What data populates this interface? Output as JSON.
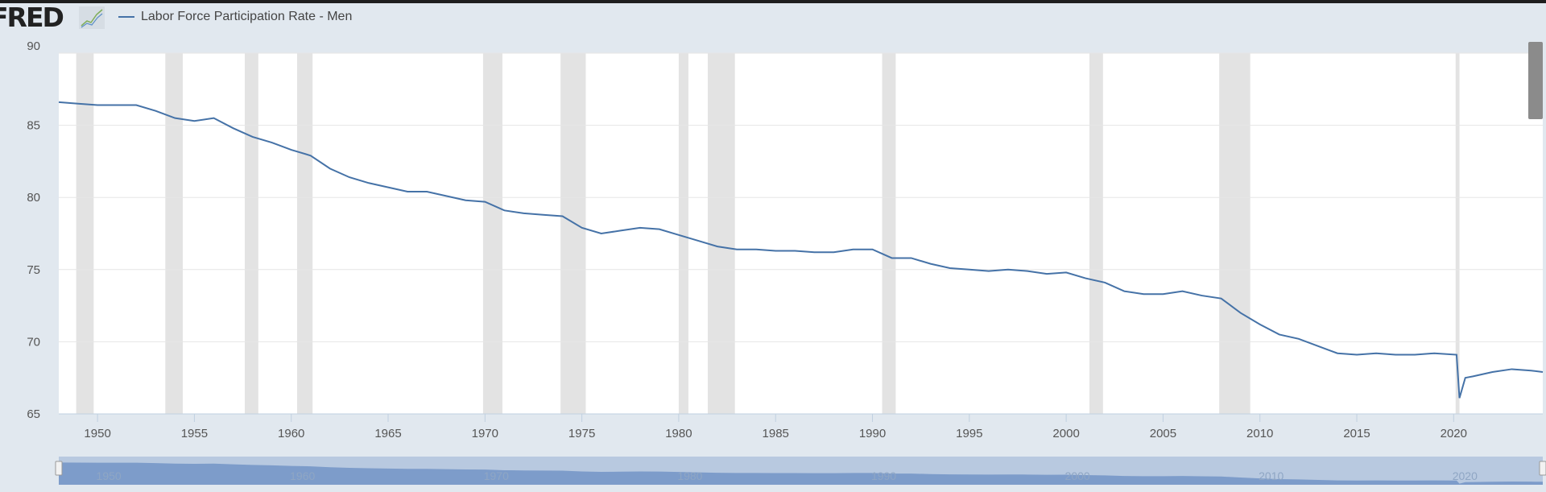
{
  "header": {
    "logo": "FRED",
    "logo_icon": "line-chart-icon"
  },
  "chart_data": {
    "type": "line",
    "title": "",
    "xlabel": "",
    "ylabel": "",
    "legend": {
      "placement": "top-left",
      "entries": [
        "Labor Force Participation Rate - Men"
      ]
    },
    "series": [
      {
        "name": "Labor Force Participation Rate - Men",
        "color": "#4572a7",
        "x": [
          1948,
          1949,
          1950,
          1951,
          1952,
          1953,
          1954,
          1955,
          1956,
          1957,
          1958,
          1959,
          1960,
          1961,
          1962,
          1963,
          1964,
          1965,
          1966,
          1967,
          1968,
          1969,
          1970,
          1971,
          1972,
          1973,
          1974,
          1975,
          1976,
          1977,
          1978,
          1979,
          1980,
          1981,
          1982,
          1983,
          1984,
          1985,
          1986,
          1987,
          1988,
          1989,
          1990,
          1991,
          1992,
          1993,
          1994,
          1995,
          1996,
          1997,
          1998,
          1999,
          2000,
          2001,
          2002,
          2003,
          2004,
          2005,
          2006,
          2007,
          2008,
          2009,
          2010,
          2011,
          2012,
          2013,
          2014,
          2015,
          2016,
          2017,
          2018,
          2019,
          2020.15,
          2020.3,
          2020.6,
          2021,
          2022,
          2023,
          2024,
          2024.6
        ],
        "y": [
          86.6,
          86.5,
          86.4,
          86.4,
          86.4,
          86.0,
          85.5,
          85.3,
          85.5,
          84.8,
          84.2,
          83.8,
          83.3,
          82.9,
          82.0,
          81.4,
          81.0,
          80.7,
          80.4,
          80.4,
          80.1,
          79.8,
          79.7,
          79.1,
          78.9,
          78.8,
          78.7,
          77.9,
          77.5,
          77.7,
          77.9,
          77.8,
          77.4,
          77.0,
          76.6,
          76.4,
          76.4,
          76.3,
          76.3,
          76.2,
          76.2,
          76.4,
          76.4,
          75.8,
          75.8,
          75.4,
          75.1,
          75.0,
          74.9,
          75.0,
          74.9,
          74.7,
          74.8,
          74.4,
          74.1,
          73.5,
          73.3,
          73.3,
          73.5,
          73.2,
          73.0,
          72.0,
          71.2,
          70.5,
          70.2,
          69.7,
          69.2,
          69.1,
          69.2,
          69.1,
          69.1,
          69.2,
          69.1,
          66.1,
          67.5,
          67.6,
          67.9,
          68.1,
          68.0,
          67.9
        ]
      }
    ],
    "xlim": [
      1948,
      2024.6
    ],
    "ylim": [
      65,
      90
    ],
    "yticks": [
      65,
      70,
      75,
      80,
      85,
      90
    ],
    "xticks": [
      1950,
      1955,
      1960,
      1965,
      1970,
      1975,
      1980,
      1985,
      1990,
      1995,
      2000,
      2005,
      2010,
      2015,
      2020
    ],
    "grid": true,
    "recessions": [
      [
        1948.9,
        1949.8
      ],
      [
        1953.5,
        1954.4
      ],
      [
        1957.6,
        1958.3
      ],
      [
        1960.3,
        1961.1
      ],
      [
        1969.9,
        1970.9
      ],
      [
        1973.9,
        1975.2
      ],
      [
        1980.0,
        1980.5
      ],
      [
        1981.5,
        1982.9
      ],
      [
        1990.5,
        1991.2
      ],
      [
        2001.2,
        2001.9
      ],
      [
        2007.9,
        2009.5
      ],
      [
        2020.1,
        2020.3
      ]
    ],
    "recession_color": "#e3e3e3",
    "navigator_labels": [
      1950,
      1960,
      1970,
      1980,
      1990,
      2000,
      2010,
      2020
    ]
  }
}
